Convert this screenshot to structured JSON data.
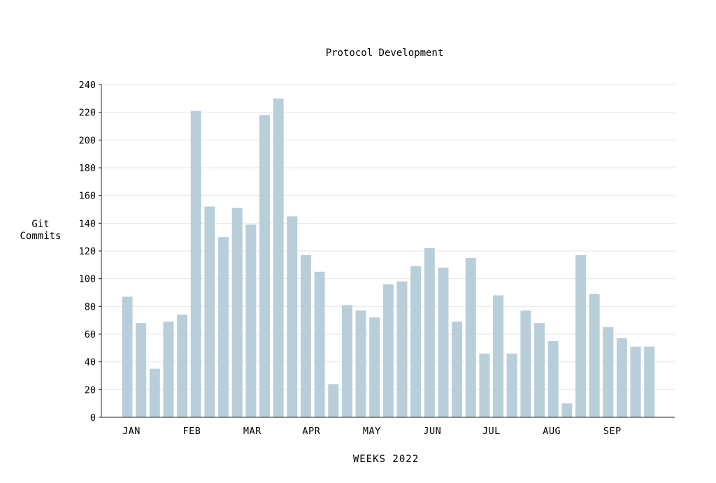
{
  "chart_data": {
    "type": "bar",
    "title": "Protocol Development",
    "ylabel_lines": [
      "Git",
      "Commits"
    ],
    "xlabel": "WEEKS 2022",
    "ylim": [
      0,
      240
    ],
    "yticks": [
      0,
      20,
      40,
      60,
      80,
      100,
      120,
      140,
      160,
      180,
      200,
      220,
      240
    ],
    "grid": true,
    "bar_color": "#b8cfd9",
    "month_labels": [
      {
        "label": "JAN",
        "at_week": 0
      },
      {
        "label": "FEB",
        "at_week": 4.4
      },
      {
        "label": "MAR",
        "at_week": 8.8
      },
      {
        "label": "APR",
        "at_week": 13.1
      },
      {
        "label": "MAY",
        "at_week": 17.5
      },
      {
        "label": "JUN",
        "at_week": 21.9
      },
      {
        "label": "JUL",
        "at_week": 26.2
      },
      {
        "label": "AUG",
        "at_week": 30.6
      },
      {
        "label": "SEP",
        "at_week": 35.0
      }
    ],
    "values": [
      87,
      68,
      35,
      69,
      74,
      221,
      152,
      130,
      151,
      139,
      218,
      230,
      145,
      117,
      105,
      24,
      81,
      77,
      72,
      96,
      98,
      109,
      122,
      108,
      69,
      115,
      46,
      88,
      46,
      77,
      68,
      55,
      10,
      117,
      89,
      65,
      57,
      51,
      51
    ]
  }
}
